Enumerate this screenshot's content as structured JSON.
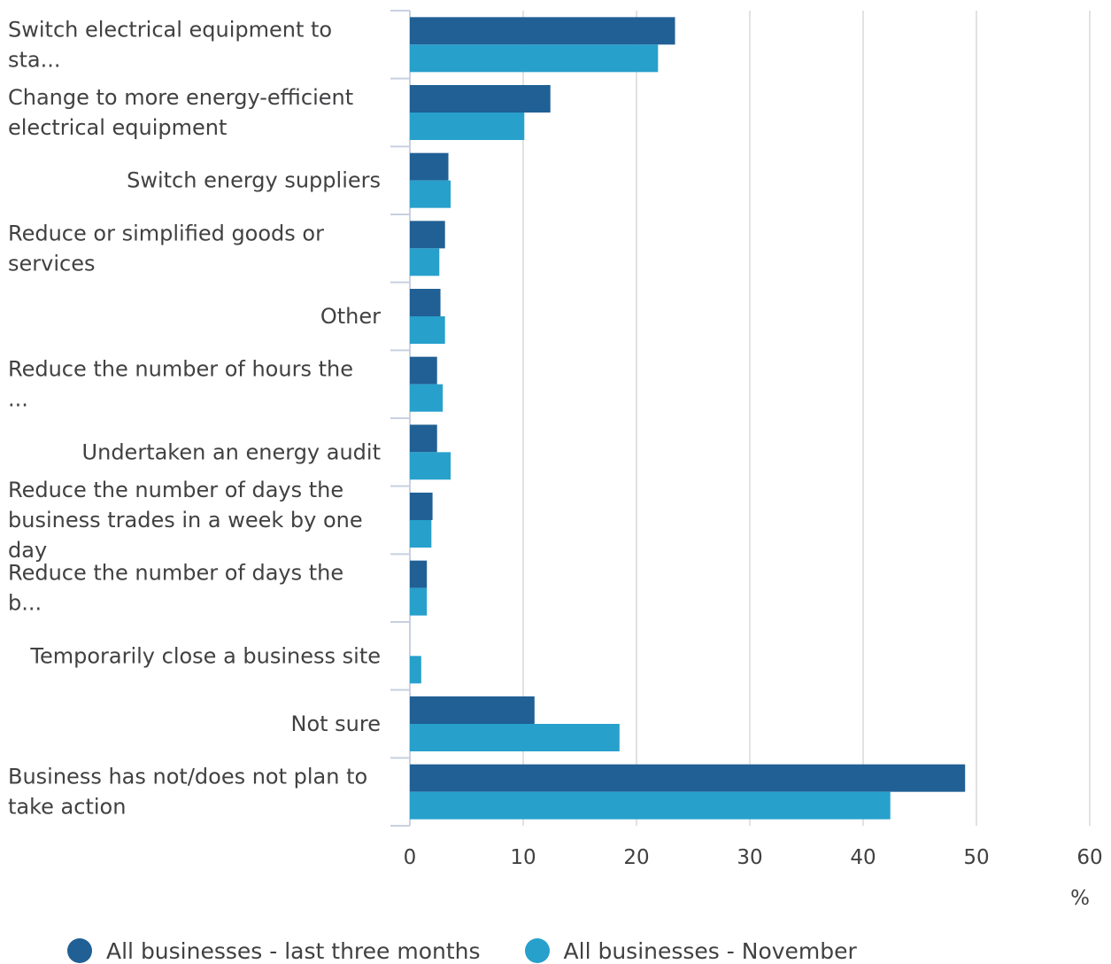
{
  "chart_data": {
    "type": "bar",
    "orientation": "horizontal",
    "categories": [
      "Switch electrical equipment to sta...",
      "Change to more energy-efficient electrical equipment",
      "Switch energy suppliers",
      "Reduce or simplified goods or services",
      "Other",
      "Reduce the number of hours the ...",
      "Undertaken an energy audit",
      "Reduce the number of days the business trades in a week by one day",
      "Reduce the number of days the b...",
      "Temporarily close a business site",
      "Not sure",
      "Business has not/does not plan to take action"
    ],
    "series": [
      {
        "name": "All businesses - last three months",
        "color": "#206095",
        "values": [
          23.4,
          12.4,
          3.4,
          3.1,
          2.7,
          2.4,
          2.4,
          2.0,
          1.5,
          0,
          11.0,
          49.0
        ]
      },
      {
        "name": "All businesses - November",
        "color": "#27a0cc",
        "values": [
          21.9,
          10.1,
          3.6,
          2.6,
          3.1,
          2.9,
          3.6,
          1.9,
          1.5,
          1.0,
          18.5,
          42.4
        ]
      }
    ],
    "xlim": [
      0,
      60
    ],
    "xticks": [
      0,
      10,
      20,
      30,
      40,
      50,
      60
    ],
    "xlabel": "%",
    "ylabel": "",
    "title": "",
    "grid": true,
    "legend_position": "bottom"
  }
}
